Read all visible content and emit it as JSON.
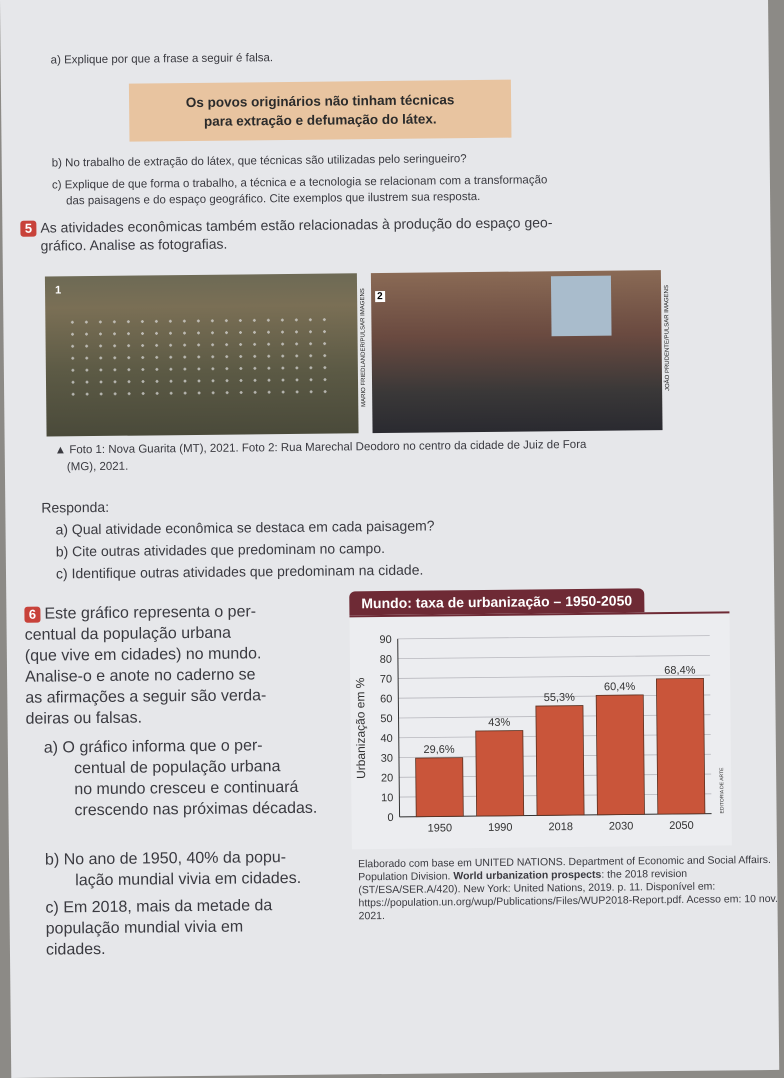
{
  "q4": {
    "a": "a) Explique por que a frase a seguir é falsa.",
    "quote_line1": "Os povos originários não tinham técnicas",
    "quote_line2": "para extração e defumação do látex.",
    "b": "b) No trabalho de extração do látex, que técnicas são utilizadas pelo seringueiro?",
    "c1": "c) Explique de que forma o trabalho, a técnica e a tecnologia se relacionam com a transformação",
    "c2": "das paisagens e do espaço geográfico. Cite exemplos que ilustrem sua resposta."
  },
  "q5": {
    "number": "5",
    "text1": "As atividades econômicas também estão relacionadas à produção do espaço geo-",
    "text2": "gráfico. Analise as fotografias.",
    "photo1_label": "1",
    "photo2_label": "2",
    "credit1": "MARIO FRIEDLANDER/PULSAR IMAGENS",
    "credit2": "JOÃO PRUDENTE/PULSAR IMAGENS",
    "caption1": "▲ Foto 1: Nova Guarita (MT), 2021. Foto 2: Rua Marechal Deodoro no centro da cidade de Juiz de Fora",
    "caption2": "(MG), 2021.",
    "responda": "Responda:",
    "a": "a) Qual atividade econômica se destaca em cada paisagem?",
    "b": "b) Cite outras atividades que predominam no campo.",
    "c": "c) Identifique outras atividades que predominam na cidade."
  },
  "q6": {
    "number": "6",
    "lines": [
      "Este gráfico representa o per-",
      "centual da população urbana",
      "(que vive em cidades) no mundo.",
      "Analise-o e anote no caderno se",
      "as afirmações a seguir são verda-",
      "deiras ou falsas."
    ],
    "a": [
      "a) O gráfico informa que o per-",
      "centual de população urbana",
      "no mundo cresceu e continuará",
      "crescendo nas próximas décadas."
    ],
    "b": [
      "b) No ano de 1950, 40% da popu-",
      "lação mundial vivia em cidades."
    ],
    "c": [
      "c) Em 2018, mais da metade da",
      "população mundial vivia em",
      "cidades."
    ]
  },
  "chart_data": {
    "type": "bar",
    "title": "Mundo: taxa de urbanização – 1950-2050",
    "ylabel": "Urbanização em %",
    "xlabel": "",
    "categories": [
      "1950",
      "1990",
      "2018",
      "2030",
      "2050"
    ],
    "values": [
      29.6,
      43,
      55.3,
      60.4,
      68.4
    ],
    "data_labels": [
      "29,6%",
      "43%",
      "55,3%",
      "60,4%",
      "68,4%"
    ],
    "ylim": [
      0,
      90
    ],
    "yticks": [
      "0",
      "10",
      "20",
      "30",
      "40",
      "50",
      "60",
      "70",
      "80",
      "90"
    ],
    "bar_color": "#c9553a",
    "grid": true,
    "credit": "EDITORIA DE ARTE"
  },
  "source": [
    "Elaborado com base em UNITED NATIONS. Department of Economic",
    "and Social Affairs. Population Division. ",
    "World urbanization prospects",
    ": the 2018 revision (ST/ESA/SER.A/420). New York: United Nations, 2019. p. 11. Disponível em: https://population.un.org/wup/Publications/Files/WUP2018-Report.pdf. Acesso em: 10 nov. 2021."
  ]
}
